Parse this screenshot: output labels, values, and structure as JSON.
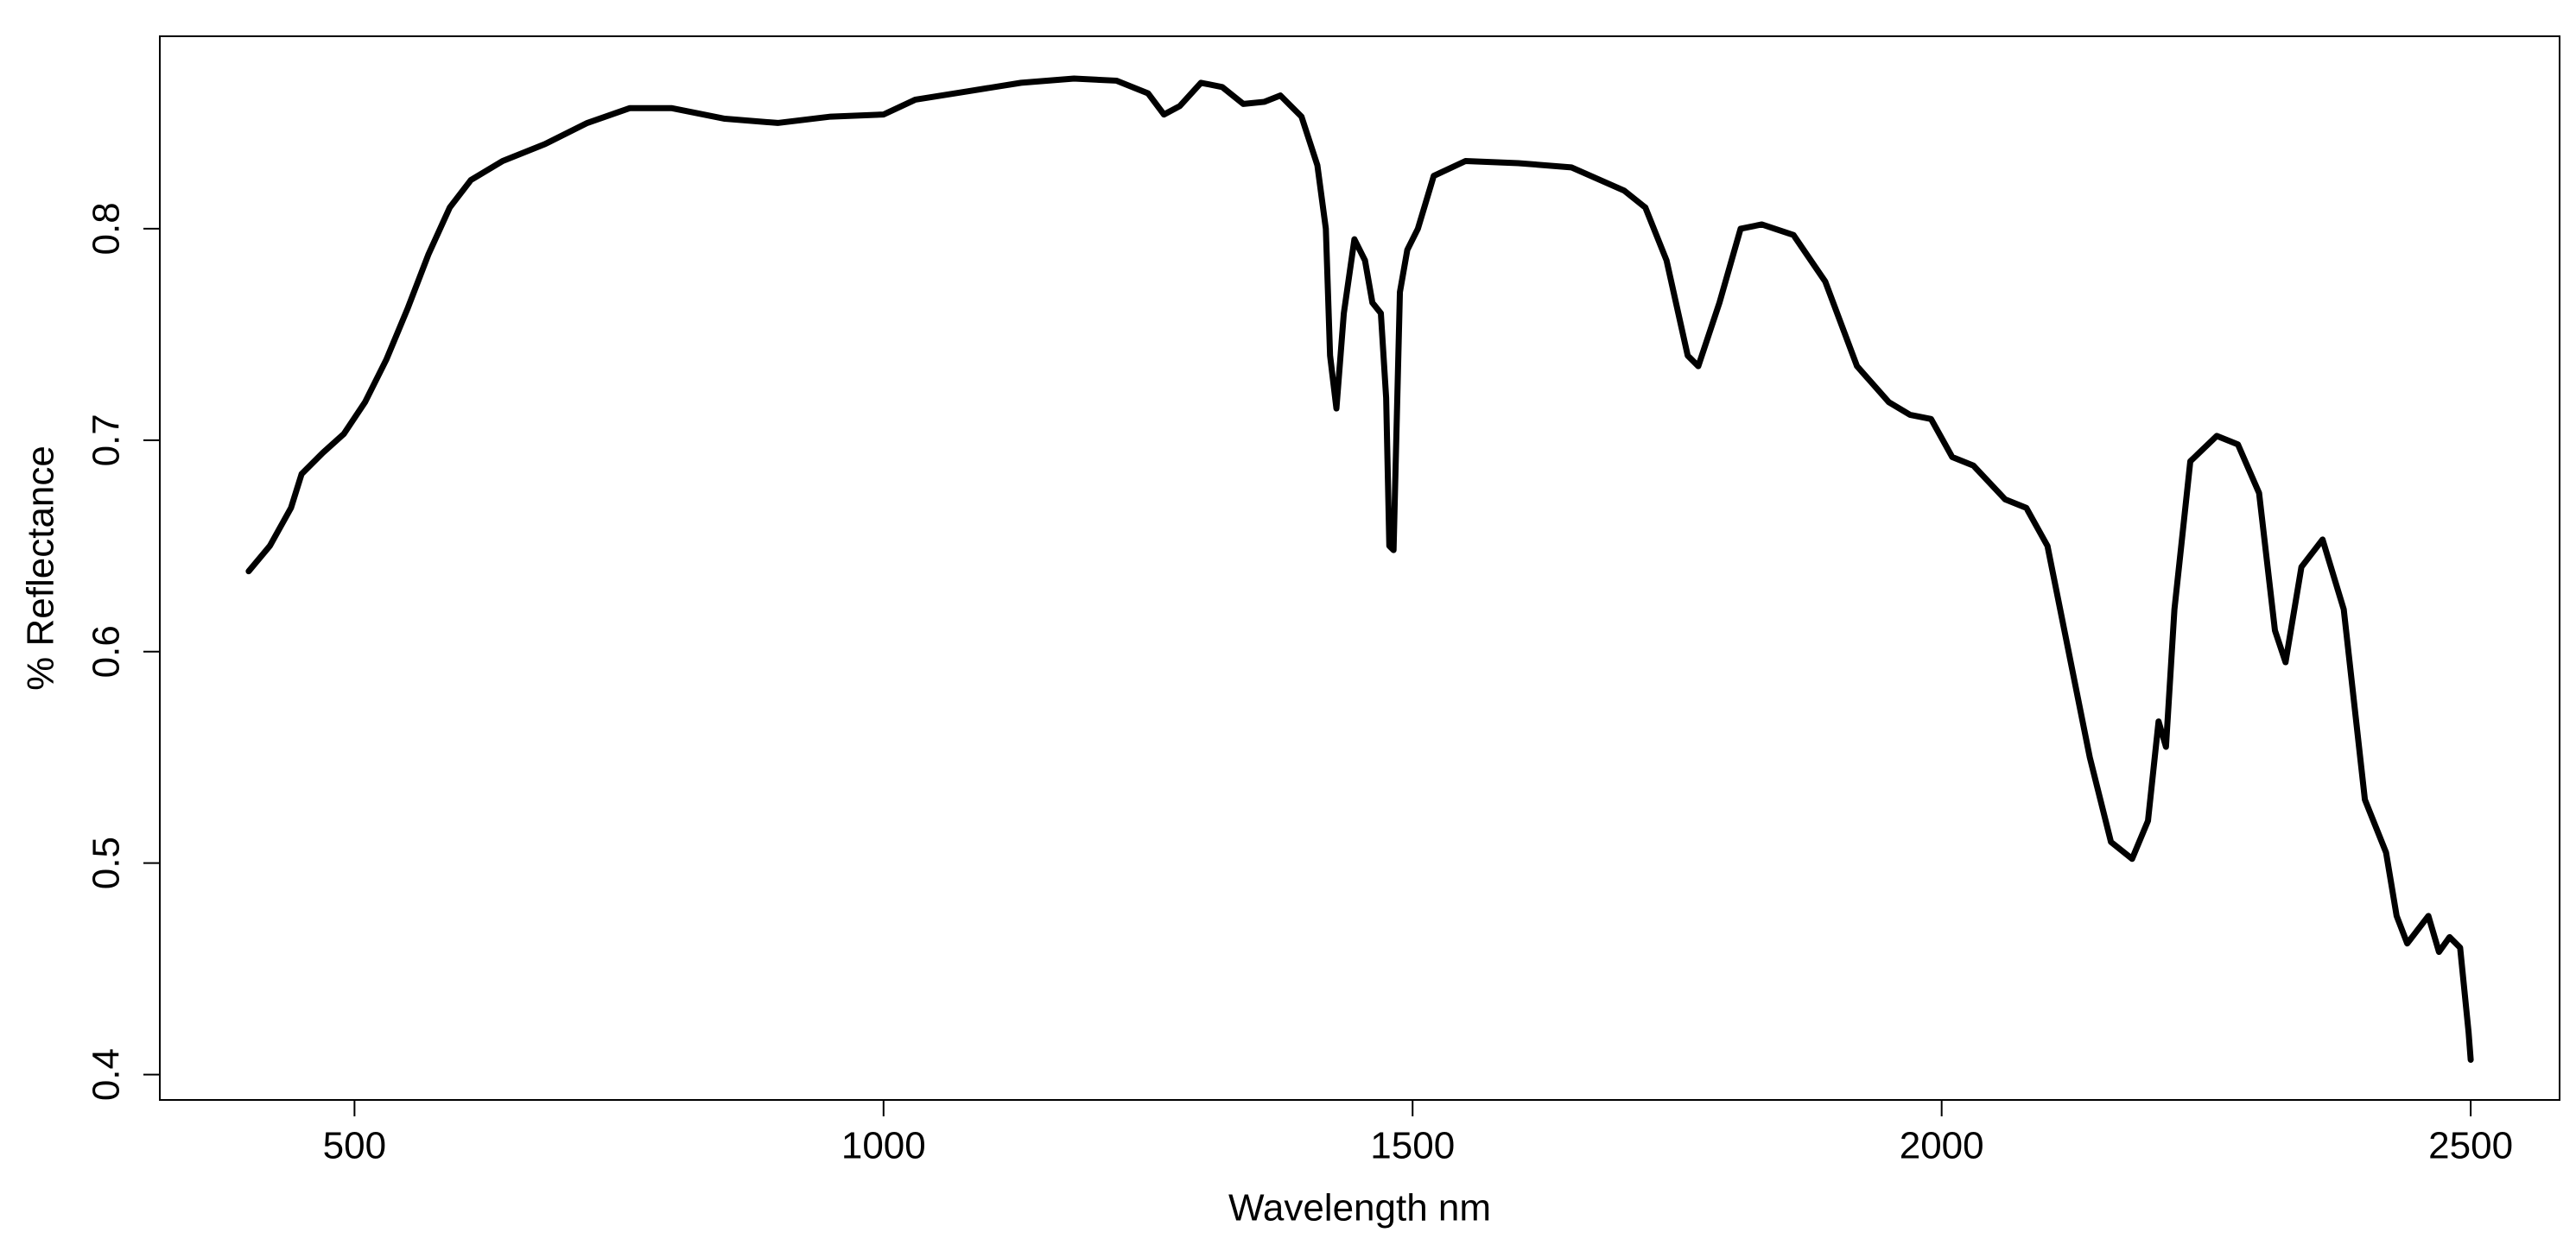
{
  "chart_data": {
    "type": "line",
    "x_label": "Wavelength nm",
    "y_label": "% Reflectance",
    "x": [
      400,
      420,
      440,
      450,
      470,
      490,
      510,
      530,
      550,
      570,
      590,
      610,
      640,
      680,
      720,
      760,
      800,
      850,
      900,
      950,
      1000,
      1030,
      1080,
      1130,
      1180,
      1220,
      1250,
      1265,
      1280,
      1300,
      1320,
      1340,
      1360,
      1375,
      1395,
      1410,
      1418,
      1422,
      1428,
      1435,
      1445,
      1455,
      1462,
      1470,
      1475,
      1478,
      1482,
      1488,
      1495,
      1505,
      1520,
      1550,
      1600,
      1650,
      1700,
      1720,
      1740,
      1760,
      1770,
      1790,
      1810,
      1830,
      1860,
      1890,
      1920,
      1950,
      1970,
      1990,
      2010,
      2030,
      2060,
      2080,
      2100,
      2120,
      2140,
      2160,
      2180,
      2195,
      2205,
      2212,
      2220,
      2235,
      2260,
      2280,
      2300,
      2315,
      2325,
      2340,
      2360,
      2380,
      2400,
      2420,
      2430,
      2440,
      2460,
      2470,
      2480,
      2490,
      2498,
      2500
    ],
    "series": [
      {
        "color": "#000000",
        "values": [
          0.638,
          0.65,
          0.668,
          0.684,
          0.694,
          0.703,
          0.718,
          0.738,
          0.762,
          0.788,
          0.81,
          0.823,
          0.832,
          0.84,
          0.85,
          0.857,
          0.857,
          0.852,
          0.85,
          0.853,
          0.854,
          0.861,
          0.865,
          0.869,
          0.871,
          0.87,
          0.864,
          0.854,
          0.858,
          0.869,
          0.867,
          0.859,
          0.86,
          0.863,
          0.853,
          0.83,
          0.8,
          0.74,
          0.715,
          0.76,
          0.795,
          0.785,
          0.765,
          0.76,
          0.72,
          0.65,
          0.648,
          0.77,
          0.79,
          0.8,
          0.825,
          0.832,
          0.831,
          0.829,
          0.818,
          0.81,
          0.785,
          0.74,
          0.735,
          0.765,
          0.8,
          0.802,
          0.797,
          0.775,
          0.735,
          0.718,
          0.712,
          0.71,
          0.692,
          0.688,
          0.672,
          0.668,
          0.65,
          0.6,
          0.55,
          0.51,
          0.502,
          0.52,
          0.567,
          0.555,
          0.62,
          0.69,
          0.702,
          0.698,
          0.675,
          0.61,
          0.595,
          0.64,
          0.653,
          0.62,
          0.53,
          0.505,
          0.475,
          0.462,
          0.475,
          0.458,
          0.465,
          0.46,
          0.42,
          0.407
        ]
      }
    ],
    "xlim": [
      316,
      2584
    ],
    "ylim": [
      0.388,
      0.891
    ],
    "xticks": [
      500,
      1000,
      1500,
      2000,
      2500
    ],
    "yticks": [
      0.4,
      0.5,
      0.6,
      0.7,
      0.8
    ]
  }
}
